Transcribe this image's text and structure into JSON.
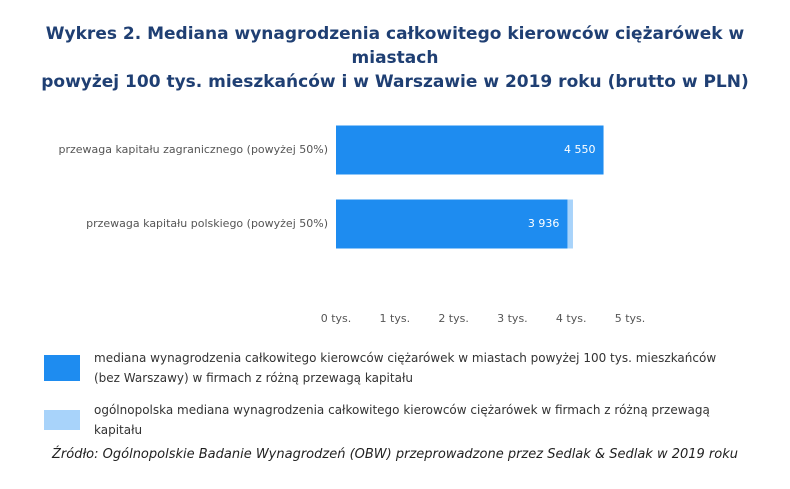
{
  "chart_data": {
    "type": "bar",
    "orientation": "horizontal",
    "title": [
      "Wykres 2. Mediana wynagrodzenia całkowitego kierowców ciężarówek w miastach",
      "powyżej 100 tys. mieszkańców i w Warszawie w 2019 roku (brutto w PLN)"
    ],
    "categories": [
      "przewaga kapitału zagranicznego (powyżej 50%)",
      "przewaga kapitału polskiego (powyżej 50%)"
    ],
    "series": [
      {
        "name": "mediana wynagrodzenia całkowitego kierowców ciężarówek w miastach powyżej 100 tys. mieszkańców (bez Warszawy) w firmach z różną przewagą kapitału",
        "color": "#1e8cf0",
        "values": [
          4.55,
          3.936
        ],
        "value_labels": [
          "4 550",
          "3 936"
        ]
      },
      {
        "name": "ogólnopolska mediana wynagrodzenia całkowitego kierowców ciężarówek w firmach z różną przewagą kapitału",
        "color": "#a8d3fa",
        "values": [
          null,
          4.03
        ]
      }
    ],
    "xlim": [
      0,
      5.1
    ],
    "xticks": [
      {
        "value": 0,
        "label": "0 tys."
      },
      {
        "value": 1,
        "label": "1 tys."
      },
      {
        "value": 2,
        "label": "2 tys."
      },
      {
        "value": 3,
        "label": "3 tys."
      },
      {
        "value": 4,
        "label": "4 tys."
      },
      {
        "value": 5,
        "label": "5 tys."
      }
    ],
    "grid": false,
    "source": "Źródło: Ogólnopolskie Badanie Wynagrodzeń (OBW) przeprowadzone przez Sedlak & Sedlak w 2019 roku"
  }
}
